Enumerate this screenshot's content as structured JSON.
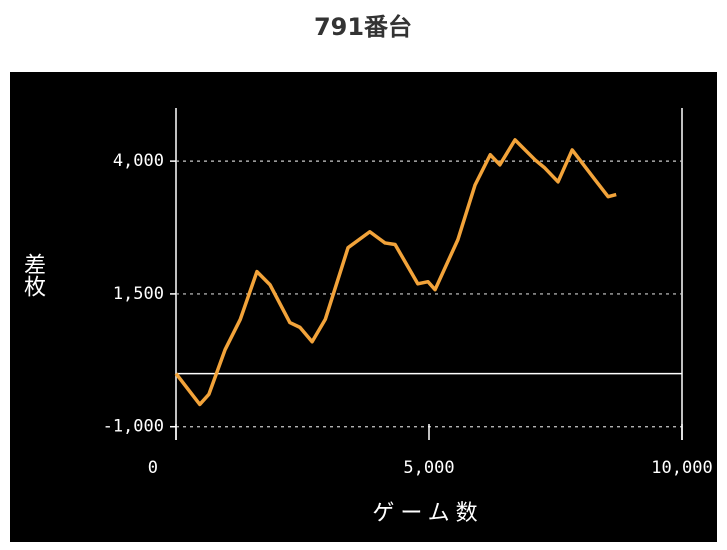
{
  "chart_data": {
    "type": "line",
    "title": "791番台",
    "xlabel": "ゲーム数",
    "ylabel": "差枚",
    "x": [
      0,
      470,
      650,
      970,
      1270,
      1600,
      1860,
      2250,
      2450,
      2690,
      2950,
      3400,
      3830,
      4130,
      4330,
      4780,
      4980,
      5120,
      5570,
      5910,
      6210,
      6400,
      6700,
      7100,
      7290,
      7550,
      7830,
      8280,
      8540,
      8700
    ],
    "series": [
      {
        "name": "差枚",
        "color": "#f2a33a",
        "values": [
          0,
          -580,
          -390,
          450,
          1020,
          1920,
          1670,
          960,
          870,
          600,
          1020,
          2370,
          2670,
          2460,
          2430,
          1690,
          1730,
          1580,
          2520,
          3550,
          4120,
          3930,
          4400,
          4020,
          3870,
          3610,
          4210,
          3650,
          3330,
          3370
        ]
      }
    ],
    "xlim": [
      0,
      10000
    ],
    "xticks": [
      0,
      {
        "value": 5000,
        "label": "5,000"
      },
      {
        "value": 10000,
        "label": "10,000"
      }
    ],
    "ylim": [
      -1250,
      5000
    ],
    "yticks": [
      {
        "value": -1000,
        "label": "-1,000"
      },
      {
        "value": 1500,
        "label": "1,500"
      },
      {
        "value": 4000,
        "label": "4,000"
      }
    ],
    "grid": true
  }
}
